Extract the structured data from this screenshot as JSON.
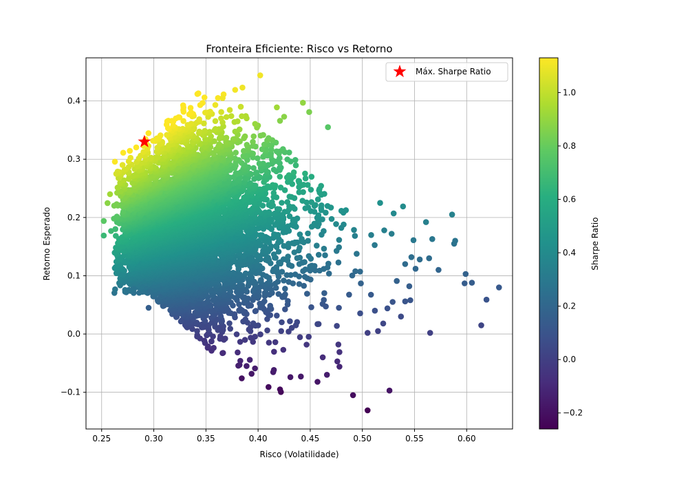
{
  "chart_data": {
    "type": "scatter",
    "title": "Fronteira Eficiente: Risco vs Retorno",
    "xlabel": "Risco (Volatilidade)",
    "ylabel": "Retorno Esperado",
    "xlim": [
      0.235,
      0.644
    ],
    "ylim": [
      -0.163,
      0.474
    ],
    "xticks": [
      0.25,
      0.3,
      0.35,
      0.4,
      0.45,
      0.5,
      0.55,
      0.6
    ],
    "yticks": [
      -0.1,
      0.0,
      0.1,
      0.2,
      0.3,
      0.4
    ],
    "grid": true,
    "colormap": "viridis",
    "colorbar": {
      "label": "Sharpe Ratio",
      "range": [
        -0.26,
        1.13
      ],
      "ticks": [
        -0.2,
        0.0,
        0.2,
        0.4,
        0.6,
        0.8,
        1.0
      ]
    },
    "legend": {
      "position": "top-right",
      "label": "Máx. Sharpe Ratio"
    },
    "max_sharpe": {
      "x": 0.291,
      "y": 0.33,
      "color": "#ff0000"
    },
    "risk_free_rate": 0.0,
    "cloud": {
      "point_count": 6500,
      "x_mode": 0.36,
      "x_min": 0.251,
      "y_mean": 0.17,
      "y_spread": 0.075
    },
    "outliers": [
      [
        0.402,
        0.444
      ],
      [
        0.385,
        0.423
      ],
      [
        0.378,
        0.419
      ],
      [
        0.366,
        0.405
      ],
      [
        0.443,
        0.397
      ],
      [
        0.449,
        0.381
      ],
      [
        0.467,
        0.355
      ],
      [
        0.418,
        0.389
      ],
      [
        0.425,
        0.373
      ],
      [
        0.421,
        0.366
      ],
      [
        0.517,
        0.225
      ],
      [
        0.539,
        0.219
      ],
      [
        0.53,
        0.207
      ],
      [
        0.521,
        0.178
      ],
      [
        0.528,
        0.172
      ],
      [
        0.549,
        0.161
      ],
      [
        0.561,
        0.192
      ],
      [
        0.567,
        0.163
      ],
      [
        0.586,
        0.205
      ],
      [
        0.589,
        0.16
      ],
      [
        0.588,
        0.155
      ],
      [
        0.599,
        0.103
      ],
      [
        0.598,
        0.087
      ],
      [
        0.605,
        0.088
      ],
      [
        0.573,
        0.11
      ],
      [
        0.564,
        0.13
      ],
      [
        0.631,
        0.08
      ],
      [
        0.619,
        0.059
      ],
      [
        0.614,
        0.015
      ],
      [
        0.565,
        0.002
      ],
      [
        0.545,
        0.082
      ],
      [
        0.546,
        0.058
      ],
      [
        0.541,
        0.056
      ],
      [
        0.533,
        0.091
      ],
      [
        0.524,
        0.044
      ],
      [
        0.537,
        0.03
      ],
      [
        0.512,
        0.04
      ],
      [
        0.505,
        0.002
      ],
      [
        0.515,
        0.005
      ],
      [
        0.52,
        0.018
      ],
      [
        0.529,
        0.055
      ],
      [
        0.551,
        0.112
      ],
      [
        0.555,
        0.128
      ],
      [
        0.547,
        0.132
      ],
      [
        0.541,
        0.12
      ],
      [
        0.491,
        -0.105
      ],
      [
        0.505,
        -0.131
      ],
      [
        0.526,
        -0.097
      ],
      [
        0.41,
        -0.091
      ],
      [
        0.421,
        -0.095
      ],
      [
        0.389,
        -0.055
      ],
      [
        0.397,
        -0.059
      ],
      [
        0.431,
        -0.074
      ],
      [
        0.441,
        -0.073
      ],
      [
        0.457,
        -0.082
      ],
      [
        0.466,
        -0.07
      ],
      [
        0.478,
        -0.056
      ],
      [
        0.462,
        -0.04
      ],
      [
        0.476,
        -0.047
      ],
      [
        0.477,
        -0.018
      ],
      [
        0.478,
        -0.031
      ],
      [
        0.281,
        0.077
      ],
      [
        0.295,
        0.045
      ],
      [
        0.296,
        0.072
      ],
      [
        0.268,
        0.129
      ],
      [
        0.252,
        0.169
      ],
      [
        0.252,
        0.194
      ],
      [
        0.258,
        0.24
      ],
      [
        0.264,
        0.275
      ]
    ]
  }
}
